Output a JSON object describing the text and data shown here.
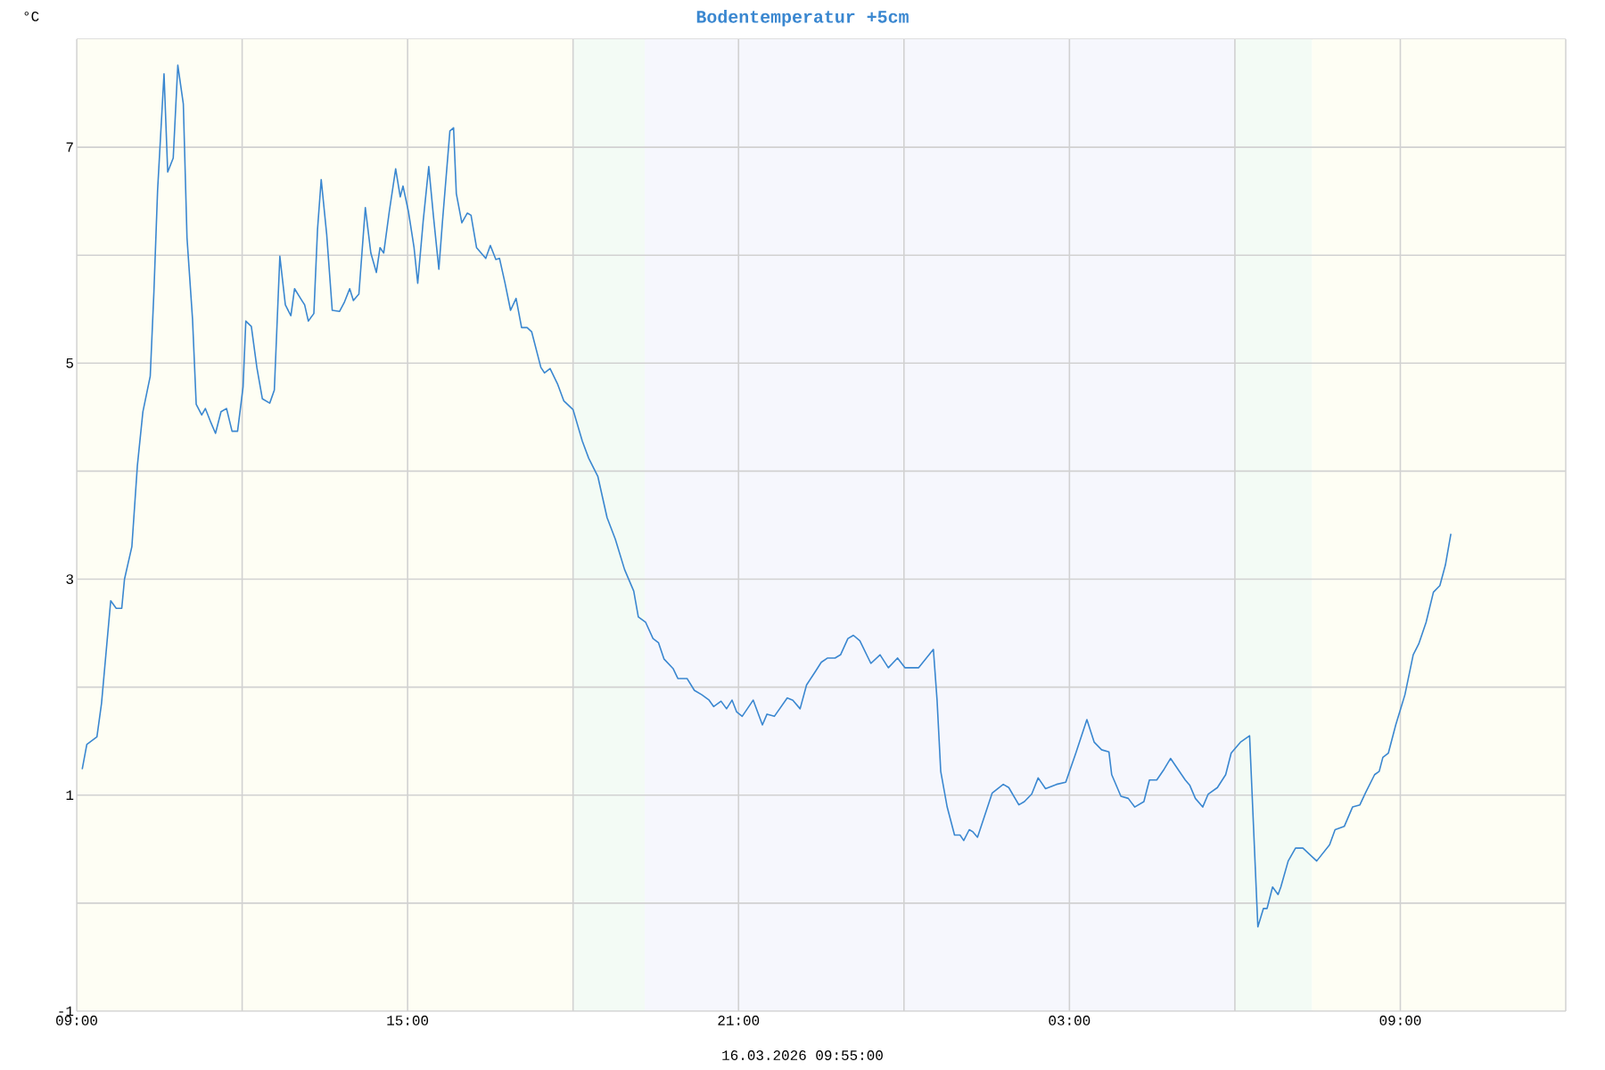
{
  "chart_data": {
    "type": "line",
    "title": "Bodentemperatur +5cm",
    "ylabel": "°C",
    "annotations": [
      "16.03.2026 09:55:00"
    ],
    "color": "#3a87d0",
    "x": [
      "2026-03-15T09:06",
      "2026-03-15T09:11",
      "2026-03-15T09:22",
      "2026-03-15T09:27",
      "2026-03-15T09:37",
      "2026-03-15T09:43",
      "2026-03-15T09:49",
      "2026-03-15T09:52",
      "2026-03-15T10:00",
      "2026-03-15T10:06",
      "2026-03-15T10:12",
      "2026-03-15T10:20",
      "2026-03-15T10:24",
      "2026-03-15T10:28",
      "2026-03-15T10:35",
      "2026-03-15T10:39",
      "2026-03-15T10:45",
      "2026-03-15T10:50",
      "2026-03-15T10:56",
      "2026-03-15T11:00",
      "2026-03-15T11:06",
      "2026-03-15T11:10",
      "2026-03-15T11:16",
      "2026-03-15T11:20",
      "2026-03-15T11:26",
      "2026-03-15T11:31",
      "2026-03-15T11:37",
      "2026-03-15T11:43",
      "2026-03-15T11:49",
      "2026-03-15T11:55",
      "2026-03-15T12:01",
      "2026-03-15T12:04",
      "2026-03-15T12:10",
      "2026-03-15T12:16",
      "2026-03-15T12:22",
      "2026-03-15T12:30",
      "2026-03-15T12:35",
      "2026-03-15T12:41",
      "2026-03-15T12:47",
      "2026-03-15T12:53",
      "2026-03-15T12:57",
      "2026-03-15T13:05",
      "2026-03-15T13:08",
      "2026-03-15T13:12",
      "2026-03-15T13:18",
      "2026-03-15T13:22",
      "2026-03-15T13:26",
      "2026-03-15T13:32",
      "2026-03-15T13:38",
      "2026-03-15T13:46",
      "2026-03-15T13:51",
      "2026-03-15T13:57",
      "2026-03-15T14:01",
      "2026-03-15T14:07",
      "2026-03-15T14:14",
      "2026-03-15T14:20",
      "2026-03-15T14:26",
      "2026-03-15T14:30",
      "2026-03-15T14:34",
      "2026-03-15T14:40",
      "2026-03-15T14:47",
      "2026-03-15T14:52",
      "2026-03-15T14:55",
      "2026-03-15T15:01",
      "2026-03-15T15:07",
      "2026-03-15T15:11",
      "2026-03-15T15:17",
      "2026-03-15T15:23",
      "2026-03-15T15:28",
      "2026-03-15T15:34",
      "2026-03-15T15:38",
      "2026-03-15T15:46",
      "2026-03-15T15:50",
      "2026-03-15T15:53",
      "2026-03-15T15:59",
      "2026-03-15T16:05",
      "2026-03-15T16:09",
      "2026-03-15T16:15",
      "2026-03-15T16:25",
      "2026-03-15T16:30",
      "2026-03-15T16:36",
      "2026-03-15T16:40",
      "2026-03-15T16:46",
      "2026-03-15T16:52",
      "2026-03-15T16:58",
      "2026-03-15T17:04",
      "2026-03-15T17:10",
      "2026-03-15T17:15",
      "2026-03-15T17:25",
      "2026-03-15T17:29",
      "2026-03-15T17:35",
      "2026-03-15T17:43",
      "2026-03-15T17:50",
      "2026-03-15T18:00",
      "2026-03-15T18:10",
      "2026-03-15T18:17",
      "2026-03-15T18:27",
      "2026-03-15T18:37",
      "2026-03-15T18:46",
      "2026-03-15T18:56",
      "2026-03-15T19:06",
      "2026-03-15T19:11",
      "2026-03-15T19:19",
      "2026-03-15T19:27",
      "2026-03-15T19:33",
      "2026-03-15T19:39",
      "2026-03-15T19:49",
      "2026-03-15T19:54",
      "2026-03-15T20:04",
      "2026-03-15T20:12",
      "2026-03-15T20:20",
      "2026-03-15T20:28",
      "2026-03-15T20:33",
      "2026-03-15T20:41",
      "2026-03-15T20:47",
      "2026-03-15T20:53",
      "2026-03-15T20:58",
      "2026-03-15T21:04",
      "2026-03-15T21:16",
      "2026-03-15T21:26",
      "2026-03-15T21:31",
      "2026-03-15T21:39",
      "2026-03-15T21:53",
      "2026-03-15T21:59",
      "2026-03-15T22:07",
      "2026-03-15T22:14",
      "2026-03-15T22:24",
      "2026-03-15T22:30",
      "2026-03-15T22:37",
      "2026-03-15T22:45",
      "2026-03-15T22:51",
      "2026-03-15T22:59",
      "2026-03-15T23:05",
      "2026-03-15T23:12",
      "2026-03-15T23:24",
      "2026-03-15T23:34",
      "2026-03-15T23:43",
      "2026-03-15T23:53",
      "2026-03-16T00:01",
      "2026-03-16T00:16",
      "2026-03-16T00:32",
      "2026-03-16T00:36",
      "2026-03-16T00:40",
      "2026-03-16T00:47",
      "2026-03-16T00:55",
      "2026-03-16T01:01",
      "2026-03-16T01:05",
      "2026-03-16T01:11",
      "2026-03-16T01:15",
      "2026-03-16T01:20",
      "2026-03-16T01:36",
      "2026-03-16T01:48",
      "2026-03-16T01:54",
      "2026-03-16T02:05",
      "2026-03-16T02:11",
      "2026-03-16T02:19",
      "2026-03-16T02:26",
      "2026-03-16T02:34",
      "2026-03-16T02:46",
      "2026-03-16T02:56",
      "2026-03-16T03:07",
      "2026-03-16T03:19",
      "2026-03-16T03:27",
      "2026-03-16T03:35",
      "2026-03-16T03:43",
      "2026-03-16T03:46",
      "2026-03-16T03:56",
      "2026-03-16T04:04",
      "2026-03-16T04:11",
      "2026-03-16T04:21",
      "2026-03-16T04:27",
      "2026-03-16T04:35",
      "2026-03-16T04:43",
      "2026-03-16T04:50",
      "2026-03-16T04:58",
      "2026-03-16T05:06",
      "2026-03-16T05:11",
      "2026-03-16T05:17",
      "2026-03-16T05:25",
      "2026-03-16T05:31",
      "2026-03-16T05:41",
      "2026-03-16T05:50",
      "2026-03-16T05:56",
      "2026-03-16T06:06",
      "2026-03-16T06:16",
      "2026-03-16T06:25",
      "2026-03-16T06:31",
      "2026-03-16T06:35",
      "2026-03-16T06:41",
      "2026-03-16T06:47",
      "2026-03-16T06:50",
      "2026-03-16T06:58",
      "2026-03-16T07:06",
      "2026-03-16T07:14",
      "2026-03-16T07:29",
      "2026-03-16T07:43",
      "2026-03-16T07:49",
      "2026-03-16T07:59",
      "2026-03-16T08:08",
      "2026-03-16T08:16",
      "2026-03-16T08:22",
      "2026-03-16T08:32",
      "2026-03-16T08:37",
      "2026-03-16T08:41",
      "2026-03-16T08:47",
      "2026-03-16T08:55",
      "2026-03-16T09:05",
      "2026-03-16T09:14",
      "2026-03-16T09:20",
      "2026-03-16T09:28",
      "2026-03-16T09:36",
      "2026-03-16T09:43",
      "2026-03-16T09:49",
      "2026-03-16T09:55"
    ],
    "values": [
      1.24,
      1.47,
      1.54,
      1.85,
      2.8,
      2.73,
      2.73,
      3.0,
      3.3,
      4.05,
      4.55,
      4.88,
      5.66,
      6.6,
      7.68,
      6.77,
      6.9,
      7.76,
      7.4,
      6.16,
      5.41,
      4.62,
      4.52,
      4.58,
      4.45,
      4.35,
      4.55,
      4.58,
      4.37,
      4.37,
      4.78,
      5.39,
      5.34,
      4.96,
      4.67,
      4.63,
      4.75,
      5.99,
      5.54,
      5.44,
      5.69,
      5.58,
      5.54,
      5.39,
      5.46,
      6.24,
      6.7,
      6.19,
      5.49,
      5.48,
      5.56,
      5.69,
      5.58,
      5.64,
      6.44,
      6.02,
      5.84,
      6.07,
      6.02,
      6.4,
      6.8,
      6.54,
      6.64,
      6.4,
      6.07,
      5.74,
      6.32,
      6.82,
      6.37,
      5.87,
      6.32,
      7.15,
      7.18,
      6.57,
      6.3,
      6.39,
      6.37,
      6.07,
      5.97,
      6.09,
      5.96,
      5.97,
      5.74,
      5.49,
      5.6,
      5.33,
      5.33,
      5.29,
      4.96,
      4.91,
      4.95,
      4.81,
      4.65,
      4.57,
      4.28,
      4.12,
      3.95,
      3.57,
      3.37,
      3.09,
      2.89,
      2.65,
      2.6,
      2.45,
      2.41,
      2.26,
      2.17,
      2.08,
      2.08,
      1.97,
      1.93,
      1.88,
      1.82,
      1.87,
      1.8,
      1.88,
      1.77,
      1.73,
      1.88,
      1.65,
      1.75,
      1.73,
      1.9,
      1.88,
      1.8,
      2.02,
      2.15,
      2.23,
      2.27,
      2.27,
      2.3,
      2.45,
      2.48,
      2.43,
      2.22,
      2.3,
      2.18,
      2.27,
      2.18,
      2.18,
      2.35,
      1.88,
      1.22,
      0.89,
      0.63,
      0.63,
      0.58,
      0.68,
      0.66,
      0.61,
      1.02,
      1.1,
      1.07,
      0.91,
      0.94,
      1.01,
      1.16,
      1.06,
      1.1,
      1.12,
      1.39,
      1.7,
      1.49,
      1.42,
      1.4,
      1.19,
      0.99,
      0.97,
      0.89,
      0.94,
      1.14,
      1.14,
      1.24,
      1.34,
      1.24,
      1.14,
      1.09,
      0.97,
      0.89,
      1.01,
      1.07,
      1.19,
      1.39,
      1.49,
      1.55,
      -0.22,
      -0.05,
      -0.05,
      0.15,
      0.08,
      0.15,
      0.39,
      0.51,
      0.51,
      0.39,
      0.54,
      0.68,
      0.71,
      0.89,
      0.91,
      1.02,
      1.19,
      1.22,
      1.35,
      1.39,
      1.65,
      1.93,
      2.3,
      2.4,
      2.6,
      2.88,
      2.94,
      3.13,
      3.42
    ],
    "xlim": [
      "2026-03-15T09:00",
      "2026-03-16T12:00"
    ],
    "ylim": [
      -1,
      8
    ],
    "xticks": [
      {
        "value": "2026-03-15T09:00",
        "label": "09:00"
      },
      {
        "value": "2026-03-15T12:00",
        "label": null
      },
      {
        "value": "2026-03-15T15:00",
        "label": "15:00"
      },
      {
        "value": "2026-03-15T18:00",
        "label": null
      },
      {
        "value": "2026-03-15T21:00",
        "label": "21:00"
      },
      {
        "value": "2026-03-16T00:00",
        "label": null
      },
      {
        "value": "2026-03-16T03:00",
        "label": "03:00"
      },
      {
        "value": "2026-03-16T06:00",
        "label": null
      },
      {
        "value": "2026-03-16T09:00",
        "label": "09:00"
      },
      {
        "value": "2026-03-16T12:00",
        "label": null
      }
    ],
    "yticks": [
      -1,
      {
        "value": 0,
        "label": null
      },
      1,
      {
        "value": 2,
        "label": null
      },
      3,
      {
        "value": 4,
        "label": null
      },
      5,
      {
        "value": 6,
        "label": null
      },
      7
    ],
    "grid": true,
    "bands": [
      {
        "axis": "x",
        "from": "2026-03-15T09:00",
        "to": "2026-03-15T18:00",
        "color": "#fefef4"
      },
      {
        "axis": "x",
        "from": "2026-03-15T18:00",
        "to": "2026-03-15T19:18",
        "color": "#f3fbf5"
      },
      {
        "axis": "x",
        "from": "2026-03-15T19:18",
        "to": "2026-03-16T06:00",
        "color": "#f6f7fd"
      },
      {
        "axis": "x",
        "from": "2026-03-16T06:00",
        "to": "2026-03-16T07:24",
        "color": "#f3fbf5"
      },
      {
        "axis": "x",
        "from": "2026-03-16T07:24",
        "to": "2026-03-16T12:00",
        "color": "#fefef4"
      }
    ]
  }
}
